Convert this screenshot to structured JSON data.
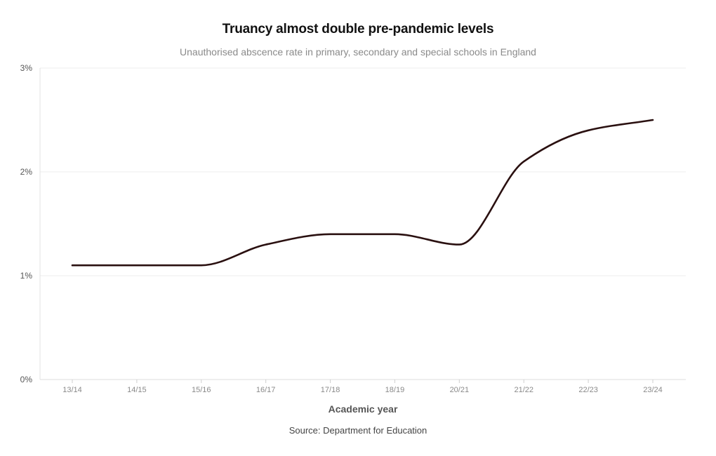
{
  "chart_data": {
    "type": "line",
    "title": "Truancy almost double pre-pandemic levels",
    "subtitle": "Unauthorised abscence rate in primary, secondary and special schools in England",
    "xlabel": "Academic year",
    "ylabel": "",
    "source": "Source: Department for Education",
    "categories": [
      "13/14",
      "14/15",
      "15/16",
      "16/17",
      "17/18",
      "18/19",
      "20/21",
      "21/22",
      "22/23",
      "23/24"
    ],
    "series": [
      {
        "name": "Unauthorised absence rate",
        "color": "#2a1010",
        "values": [
          1.1,
          1.1,
          1.1,
          1.3,
          1.4,
          1.4,
          1.3,
          2.1,
          2.4,
          2.5
        ]
      }
    ],
    "ylim": [
      0,
      3
    ],
    "yticks": [
      0,
      1,
      2,
      3
    ],
    "ytick_labels": [
      "0%",
      "1%",
      "2%",
      "3%"
    ],
    "grid": true
  }
}
